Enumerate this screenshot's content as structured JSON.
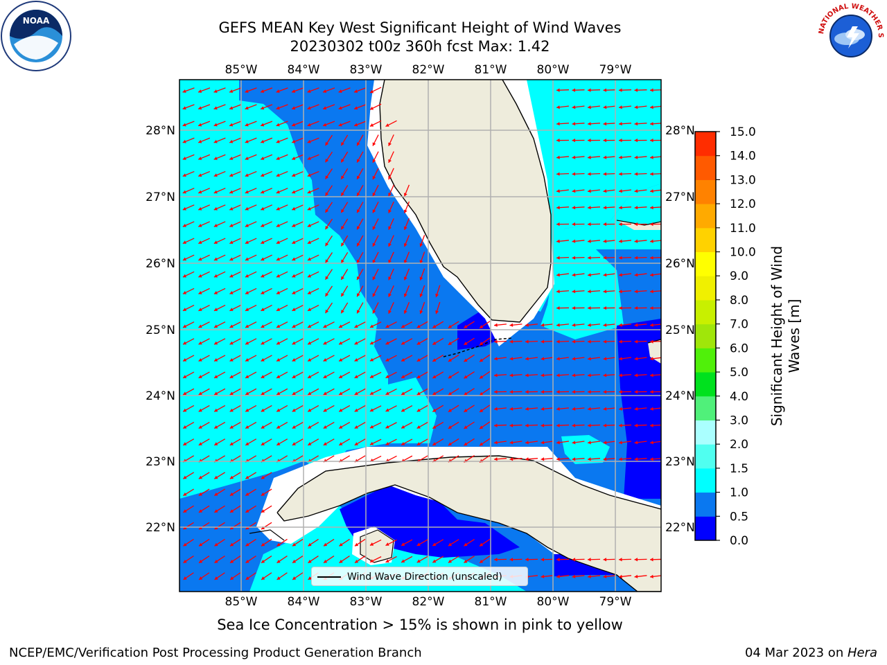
{
  "header": {
    "title_line1": "GEFS MEAN Key West Significant Height of Wind Waves",
    "title_line2": "20230302 t00z 360h fcst   Max: 1.42"
  },
  "logos": {
    "left": {
      "icon": "noaa-logo",
      "text": "NOAA"
    },
    "right": {
      "icon": "nws-logo",
      "text": "NATIONAL WEATHER SERVICE"
    }
  },
  "map": {
    "longitude_labels": [
      "85°W",
      "84°W",
      "83°W",
      "82°W",
      "81°W",
      "80°W",
      "79°W"
    ],
    "latitude_labels": [
      "28°N",
      "27°N",
      "26°N",
      "25°N",
      "24°N",
      "23°N",
      "22°N"
    ],
    "arrow_color": "#ff0000",
    "land_color": "#eeecdc",
    "legend_label": "Wind Wave Direction (unscaled)"
  },
  "colorbar": {
    "title": "Significant Height of Wind Waves [m]",
    "title_line1": "Significant Height of Wind",
    "title_line2": "Waves [m]",
    "ticks": [
      "0.0",
      "0.5",
      "1.0",
      "1.5",
      "2.0",
      "3.0",
      "4.0",
      "5.0",
      "6.0",
      "7.0",
      "8.0",
      "9.0",
      "10.0",
      "11.0",
      "12.0",
      "13.0",
      "14.0",
      "15.0"
    ],
    "colors": [
      "#0000ff",
      "#0a78f0",
      "#00ffff",
      "#50fff0",
      "#aaffff",
      "#50f07a",
      "#00e11e",
      "#50f00a",
      "#a0e60a",
      "#c8f000",
      "#f0f000",
      "#ffff00",
      "#ffd200",
      "#ffaa00",
      "#ff8200",
      "#ff5a00",
      "#ff2d00"
    ]
  },
  "caption": "Sea Ice Concentration > 15% is shown in pink to yellow",
  "footer": {
    "left": "NCEP/EMC/Verification Post Processing Product Generation Branch",
    "date": "04 Mar 2023 on ",
    "host": "Hera"
  }
}
